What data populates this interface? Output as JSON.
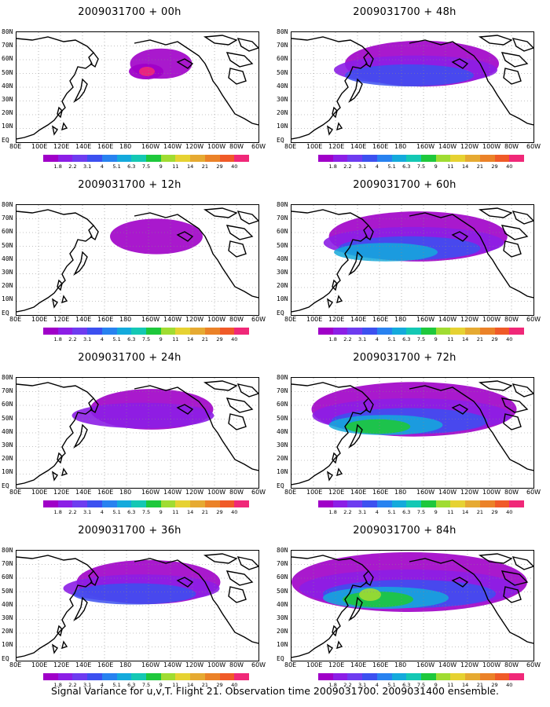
{
  "caption": "Signal Variance for u,v,T. Flight 21. Observation time 2009031700. 2009031400 ensemble.",
  "lat_labels": [
    "80N",
    "70N",
    "60N",
    "50N",
    "40N",
    "30N",
    "20N",
    "10N",
    "EQ"
  ],
  "lon_labels": [
    "80E",
    "100E",
    "120E",
    "140E",
    "160E",
    "180",
    "160W",
    "140W",
    "120W",
    "100W",
    "80W",
    "60W"
  ],
  "colorbar": {
    "labels": [
      "1.8",
      "2.2",
      "3.1",
      "4",
      "5.1",
      "6.3",
      "7.5",
      "9",
      "11",
      "14",
      "21",
      "29",
      "40"
    ],
    "colors": [
      "#a000c8",
      "#8c1ee6",
      "#6e3cf0",
      "#3c50f0",
      "#2882f0",
      "#14aadc",
      "#14c8b4",
      "#1ec83c",
      "#a0dc32",
      "#e6d232",
      "#e6aa32",
      "#eb8228",
      "#f05a28",
      "#f02878"
    ]
  },
  "panels": [
    {
      "title": "2009031700 + 00h"
    },
    {
      "title": "2009031700 + 12h"
    },
    {
      "title": "2009031700 + 24h"
    },
    {
      "title": "2009031700 + 36h"
    },
    {
      "title": "2009031700 + 48h"
    },
    {
      "title": "2009031700 + 60h"
    },
    {
      "title": "2009031700 + 72h"
    },
    {
      "title": "2009031700 + 84h"
    }
  ]
}
